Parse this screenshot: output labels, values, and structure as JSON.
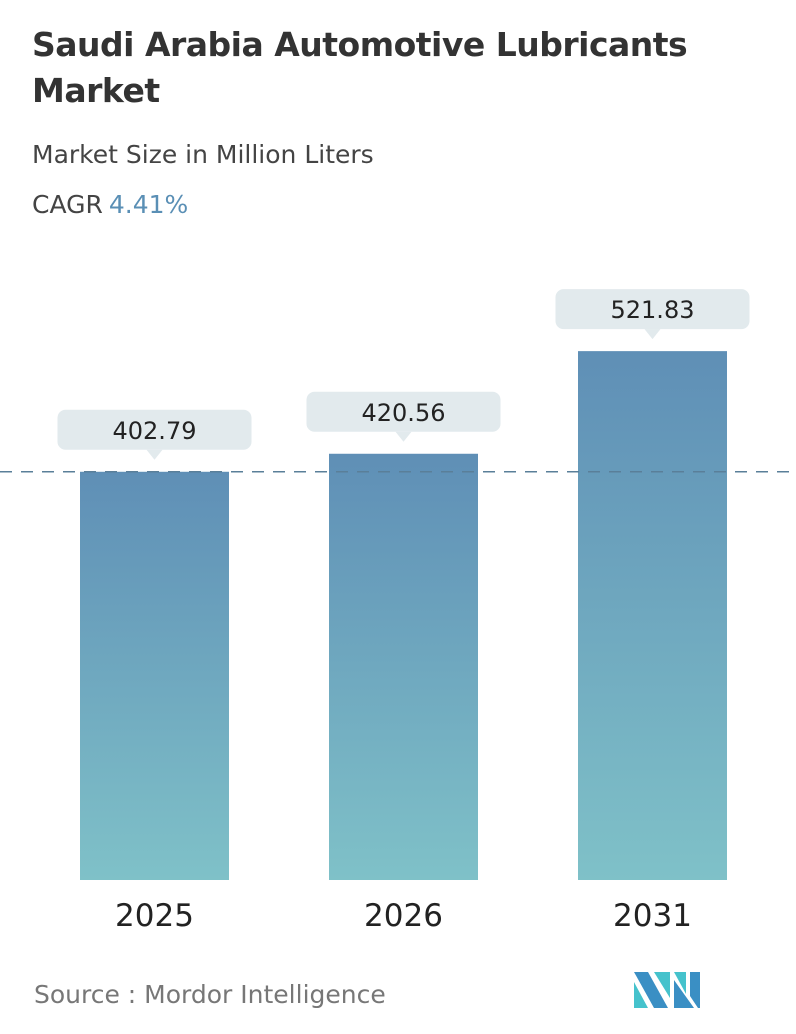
{
  "header": {
    "title": "Saudi Arabia Automotive Lubricants Market",
    "subtitle": "Market Size in Million Liters",
    "cagr_label": "CAGR",
    "cagr_value": "4.41%"
  },
  "chart_data": {
    "type": "bar",
    "categories": [
      "2025",
      "2026",
      "2031"
    ],
    "values": [
      402.79,
      420.56,
      521.83
    ],
    "data_labels": [
      "402.79",
      "420.56",
      "521.83"
    ],
    "ylim": [
      0,
      540
    ],
    "grid": false,
    "reference_line": 402.79,
    "colors": {
      "bar_top": "#5f8fb6",
      "bar_bottom": "#7fc1c8",
      "label_bg": "#e2eaed",
      "ref_line": "#5a7f99"
    }
  },
  "footer": {
    "source": "Source :  Mordor Intelligence",
    "logo_text": "Mordor Intelligence"
  }
}
